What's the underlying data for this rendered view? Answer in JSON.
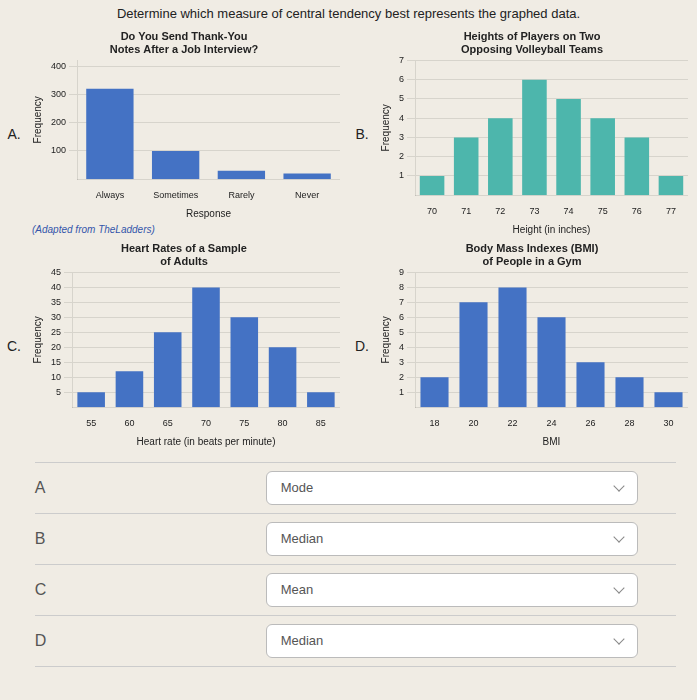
{
  "title": "Determine which measure of central tendency best represents the graphed data.",
  "chart_data": [
    {
      "type": "bar",
      "title": "Do You Send Thank-You\nNotes After a Job Interview?",
      "categories": [
        "Always",
        "Sometimes",
        "Rarely",
        "Never"
      ],
      "values": [
        320,
        100,
        30,
        20
      ],
      "xlabel": "Response",
      "ylabel": "Frequency",
      "ylim": [
        0,
        420
      ],
      "yticks": [
        100,
        200,
        300,
        400
      ],
      "color": "#4472c4",
      "grid": true,
      "annotations": [
        "A.",
        "(Adapted from TheLadders)"
      ]
    },
    {
      "type": "bar",
      "title": "Heights of Players on Two\nOpposing Volleyball Teams",
      "categories": [
        70,
        71,
        72,
        73,
        74,
        75,
        76,
        77
      ],
      "values": [
        1,
        3,
        4,
        6,
        5,
        4,
        3,
        1
      ],
      "xlabel": "Height (in inches)",
      "ylabel": "Frequency",
      "ylim": [
        0,
        7
      ],
      "yticks": [
        1,
        2,
        3,
        4,
        5,
        6,
        7
      ],
      "color": "#4db6ac",
      "grid": true,
      "annotations": [
        "B."
      ]
    },
    {
      "type": "bar",
      "title": "Heart Rates of a Sample\nof Adults",
      "categories": [
        55,
        60,
        65,
        70,
        75,
        80,
        85
      ],
      "values": [
        5,
        12,
        25,
        40,
        30,
        20,
        5
      ],
      "xlabel": "Heart rate (in beats per minute)",
      "ylabel": "Frequency",
      "ylim": [
        0,
        45
      ],
      "yticks": [
        5,
        10,
        15,
        20,
        25,
        30,
        35,
        40,
        45
      ],
      "color": "#4472c4",
      "grid": true,
      "annotations": [
        "C."
      ]
    },
    {
      "type": "bar",
      "title": "Body Mass Indexes (BMI)\nof People in a Gym",
      "categories": [
        18,
        20,
        22,
        24,
        26,
        28,
        30
      ],
      "values": [
        2,
        7,
        8,
        6,
        3,
        2,
        1
      ],
      "xlabel": "BMI",
      "ylabel": "Frequency",
      "ylim": [
        0,
        9
      ],
      "yticks": [
        1,
        2,
        3,
        4,
        5,
        6,
        7,
        8,
        9
      ],
      "color": "#4472c4",
      "grid": true,
      "annotations": [
        "D."
      ]
    }
  ],
  "annotations": [
    [
      "A",
      "Mode"
    ],
    [
      "B",
      "Median"
    ],
    [
      "C",
      "Mean"
    ],
    [
      "D",
      "Median"
    ]
  ]
}
